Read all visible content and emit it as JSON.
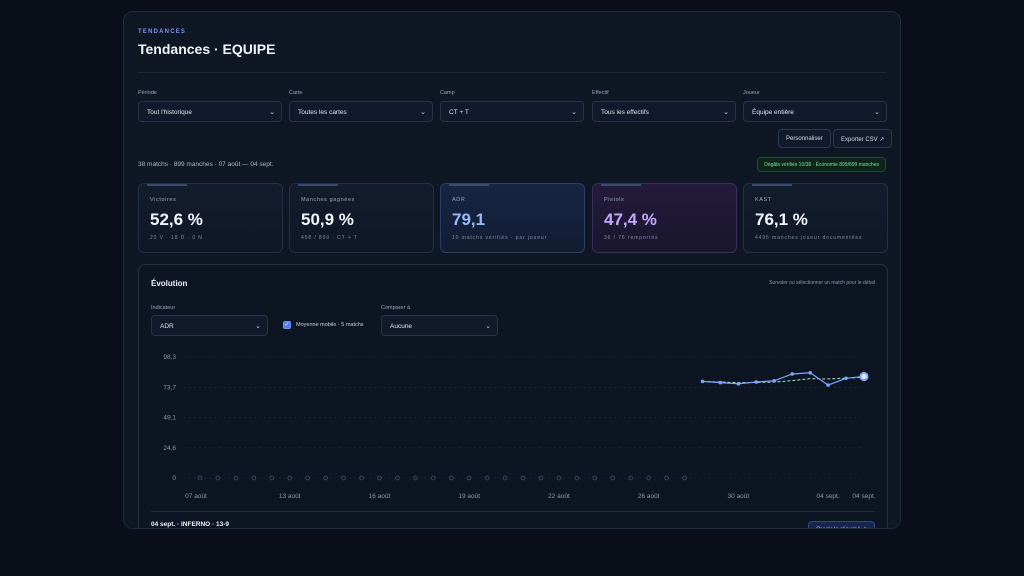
{
  "header": {
    "kicker": "TENDANCES",
    "title": "Tendances · EQUIPE"
  },
  "filters": [
    {
      "label": "Période",
      "value": "Tout l'historique"
    },
    {
      "label": "Carte",
      "value": "Toutes les cartes"
    },
    {
      "label": "Camp",
      "value": "CT + T"
    },
    {
      "label": "Effectif",
      "value": "Tous les effectifs"
    },
    {
      "label": "Joueur",
      "value": "Équipe entière"
    }
  ],
  "actions": {
    "customize": "Personnaliser",
    "export": "Exporter CSV ↗"
  },
  "summary": "38 matchs · 899 manches · 07 août — 04 sept.",
  "verified_badge": "Dégâts vérifiés 10/38 · Économie 899/899 manches",
  "kpis": [
    {
      "label": "Victoires",
      "value": "52,6 %",
      "sub": "20 V · 18 D · 0 N"
    },
    {
      "label": "Manches gagnées",
      "value": "50,9 %",
      "sub": "458 / 899 · CT + T"
    },
    {
      "label": "ADR",
      "value": "79,1",
      "sub": "10 matchs vérifiés · par joueur"
    },
    {
      "label": "Pistols",
      "value": "47,4 %",
      "sub": "36 / 76 remportés"
    },
    {
      "label": "KAST",
      "value": "76,1 %",
      "sub": "4495 manches joueur documentées"
    }
  ],
  "evolution": {
    "title": "Évolution",
    "hint": "Survoler ou sélectionner un match pour le détail",
    "indicator_label": "Indicateur",
    "indicator_value": "ADR",
    "moving_avg_label": "Moyenne mobile · 5 matchs",
    "moving_avg_checked": true,
    "compare_label": "Comparer à",
    "compare_value": "Aucune",
    "selected_match": "04 sept. · INFERNO · 13-9",
    "open_button": "Ouvrir le résumé ↗"
  },
  "chart_data": {
    "type": "line",
    "y_ticks": [
      "98,3",
      "73,7",
      "49,1",
      "24,6",
      "0"
    ],
    "ylim": [
      0,
      98.3
    ],
    "x_tick_labels": [
      "07 août",
      "13 août",
      "16 août",
      "19 août",
      "22 août",
      "26 août",
      "30 août",
      "04 sept.",
      "04 sept."
    ],
    "match_count": 38,
    "series": [
      {
        "name": "ADR",
        "values": [
          0,
          0,
          0,
          0,
          0,
          0,
          0,
          0,
          0,
          0,
          0,
          0,
          0,
          0,
          0,
          0,
          0,
          0,
          0,
          0,
          0,
          0,
          0,
          0,
          0,
          0,
          0,
          0,
          78.5,
          77.5,
          76.5,
          78.0,
          79.0,
          84.5,
          85.5,
          75.5,
          81.0,
          82.5
        ]
      },
      {
        "name": "Moyenne mobile · 5 matchs",
        "values": [
          null,
          null,
          null,
          null,
          null,
          null,
          null,
          null,
          null,
          null,
          null,
          null,
          null,
          null,
          null,
          null,
          null,
          null,
          null,
          null,
          null,
          null,
          null,
          null,
          null,
          null,
          null,
          null,
          78.5,
          78.0,
          77.5,
          77.6,
          77.9,
          79.1,
          80.7,
          80.5,
          81.1,
          81.8
        ]
      }
    ],
    "grid": true,
    "accent": "#7fa3ff",
    "avg_color": "#9fe7c8"
  }
}
